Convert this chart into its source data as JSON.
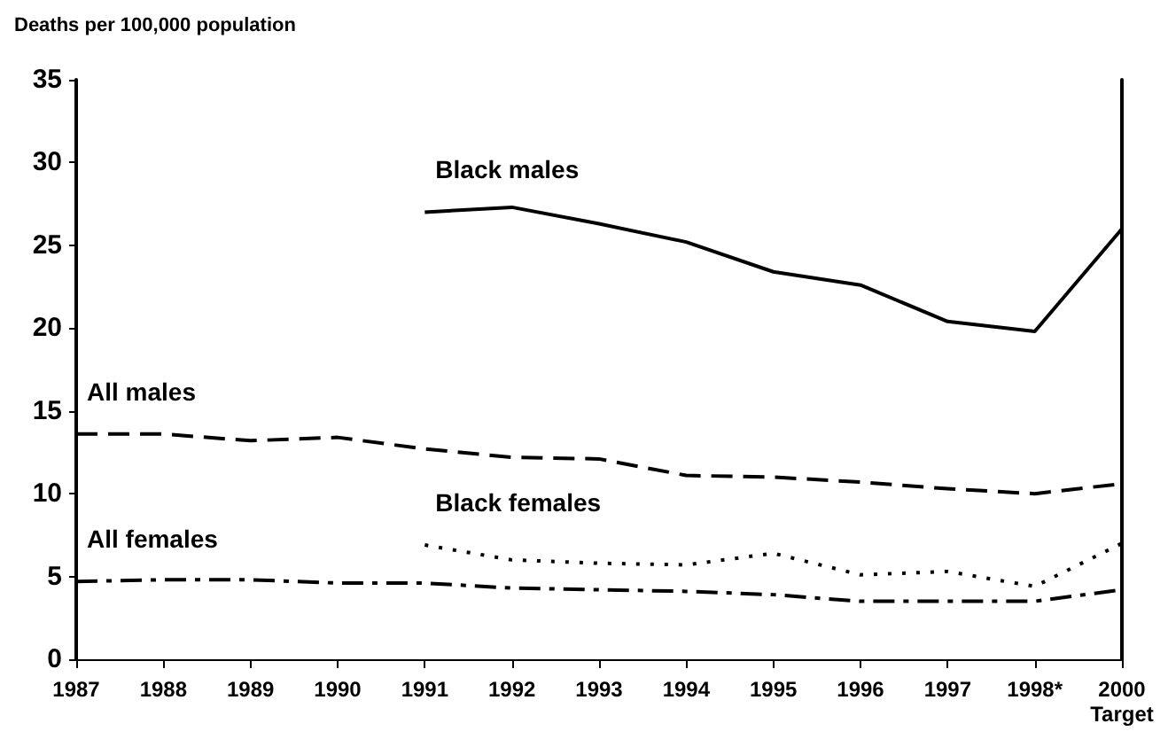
{
  "chart_data": {
    "type": "line",
    "ylabel": "Deaths per 100,000 population",
    "categories": [
      "1987",
      "1988",
      "1989",
      "1990",
      "1991",
      "1992",
      "1993",
      "1994",
      "1995",
      "1996",
      "1997",
      "1998*",
      "2000\nTarget"
    ],
    "series": [
      {
        "name": "Black males",
        "color": "#000000",
        "line_style": "solid",
        "values": [
          null,
          null,
          null,
          null,
          27.0,
          27.3,
          26.3,
          25.2,
          23.4,
          22.6,
          20.4,
          19.8,
          26.0
        ]
      },
      {
        "name": "All males",
        "color": "#000000",
        "line_style": "dashed",
        "values": [
          13.6,
          13.6,
          13.2,
          13.4,
          12.7,
          12.2,
          12.1,
          11.1,
          11.0,
          10.7,
          10.3,
          10.0,
          10.6
        ]
      },
      {
        "name": "Black females",
        "color": "#000000",
        "line_style": "dotted",
        "values": [
          null,
          null,
          null,
          null,
          6.9,
          6.0,
          5.8,
          5.7,
          6.4,
          5.1,
          5.3,
          4.4,
          7.0
        ]
      },
      {
        "name": "All females",
        "color": "#000000",
        "line_style": "dashdot",
        "values": [
          4.7,
          4.8,
          4.8,
          4.6,
          4.6,
          4.3,
          4.2,
          4.1,
          3.9,
          3.5,
          3.5,
          3.5,
          4.2
        ]
      }
    ],
    "ylim": [
      0,
      35
    ],
    "yticks": [
      0,
      5,
      10,
      15,
      20,
      25,
      30,
      35
    ],
    "grid": false,
    "legend": false,
    "marker": "none"
  }
}
